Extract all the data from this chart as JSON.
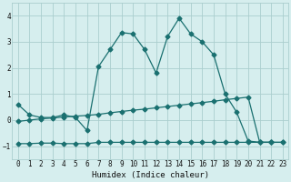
{
  "xlabel": "Humidex (Indice chaleur)",
  "xlim": [
    -0.5,
    23.5
  ],
  "ylim": [
    -1.5,
    4.5
  ],
  "yticks": [
    -1,
    0,
    1,
    2,
    3,
    4
  ],
  "xticks": [
    0,
    1,
    2,
    3,
    4,
    5,
    6,
    7,
    8,
    9,
    10,
    11,
    12,
    13,
    14,
    15,
    16,
    17,
    18,
    19,
    20,
    21,
    22,
    23
  ],
  "bg_color": "#d6eeee",
  "grid_color": "#aacece",
  "line_color": "#1a7070",
  "line1_x": [
    0,
    1,
    2,
    3,
    4,
    5,
    6,
    7,
    8,
    9,
    10,
    11,
    12,
    13,
    14,
    15,
    16,
    17,
    18,
    19,
    20,
    21,
    22
  ],
  "line1_y": [
    0.6,
    0.2,
    0.1,
    0.1,
    0.2,
    0.1,
    -0.4,
    2.05,
    2.7,
    3.35,
    3.3,
    2.7,
    1.8,
    3.2,
    3.9,
    3.3,
    3.0,
    2.5,
    1.0,
    0.3,
    -0.8,
    -0.85,
    -0.85
  ],
  "line2_x": [
    0,
    1,
    2,
    3,
    4,
    5,
    6,
    7,
    8,
    9,
    10,
    11,
    12,
    13,
    14,
    15,
    16,
    17,
    18,
    19,
    20,
    21,
    22,
    23
  ],
  "line2_y": [
    -0.05,
    0.0,
    0.05,
    0.08,
    0.12,
    0.15,
    0.18,
    0.22,
    0.28,
    0.33,
    0.38,
    0.42,
    0.47,
    0.52,
    0.57,
    0.62,
    0.67,
    0.72,
    0.78,
    0.83,
    0.88,
    -0.85,
    -0.85,
    -0.85
  ],
  "line3_x": [
    0,
    1,
    2,
    3,
    4,
    5,
    6,
    7,
    8,
    9,
    10,
    11,
    12,
    13,
    14,
    15,
    16,
    17,
    18,
    19,
    20,
    21,
    22,
    23
  ],
  "line3_y": [
    -0.9,
    -0.9,
    -0.88,
    -0.88,
    -0.9,
    -0.9,
    -0.9,
    -0.85,
    -0.85,
    -0.85,
    -0.85,
    -0.85,
    -0.85,
    -0.85,
    -0.85,
    -0.85,
    -0.85,
    -0.85,
    -0.85,
    -0.85,
    -0.85,
    -0.85,
    -0.85,
    -0.85
  ]
}
